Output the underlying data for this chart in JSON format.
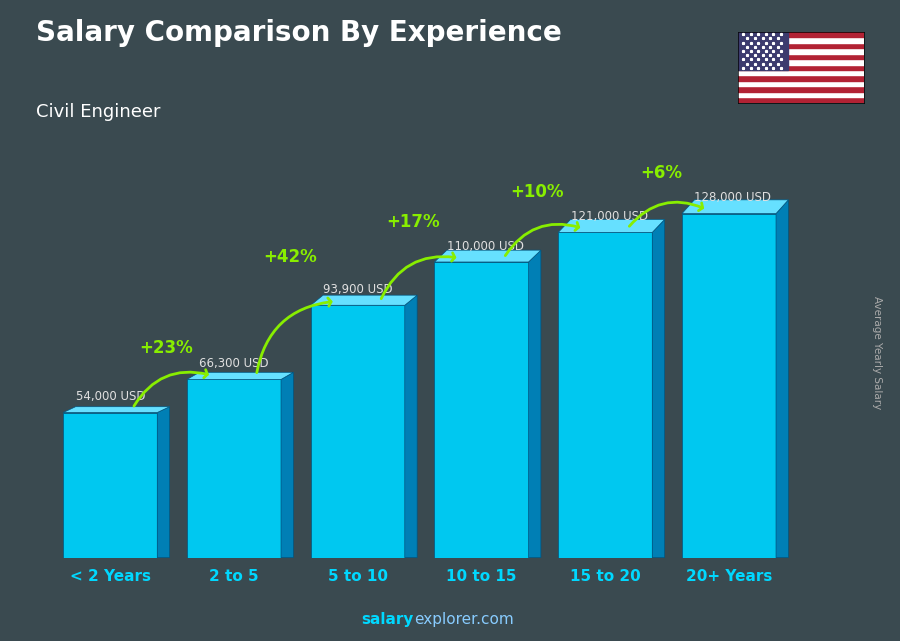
{
  "title": "Salary Comparison By Experience",
  "subtitle": "Civil Engineer",
  "categories": [
    "< 2 Years",
    "2 to 5",
    "5 to 10",
    "10 to 15",
    "15 to 20",
    "20+ Years"
  ],
  "values": [
    54000,
    66300,
    93900,
    110000,
    121000,
    128000
  ],
  "labels": [
    "54,000 USD",
    "66,300 USD",
    "93,900 USD",
    "110,000 USD",
    "121,000 USD",
    "128,000 USD"
  ],
  "pct_changes": [
    "+23%",
    "+42%",
    "+17%",
    "+10%",
    "+6%"
  ],
  "bar_face": "#00c8f0",
  "bar_top": "#66e0ff",
  "bar_side": "#007fb5",
  "bar_edge": "#005580",
  "ylabel": "Average Yearly Salary",
  "footer_salary": "salary",
  "footer_rest": "explorer.com",
  "pct_color": "#88ee00",
  "cat_color": "#00d8ff",
  "label_color": "#e0e0e0",
  "ylim": [
    0,
    155000
  ],
  "flag_stripes": [
    "#B22234",
    "#ffffff"
  ],
  "flag_canton": "#3C3B6E"
}
